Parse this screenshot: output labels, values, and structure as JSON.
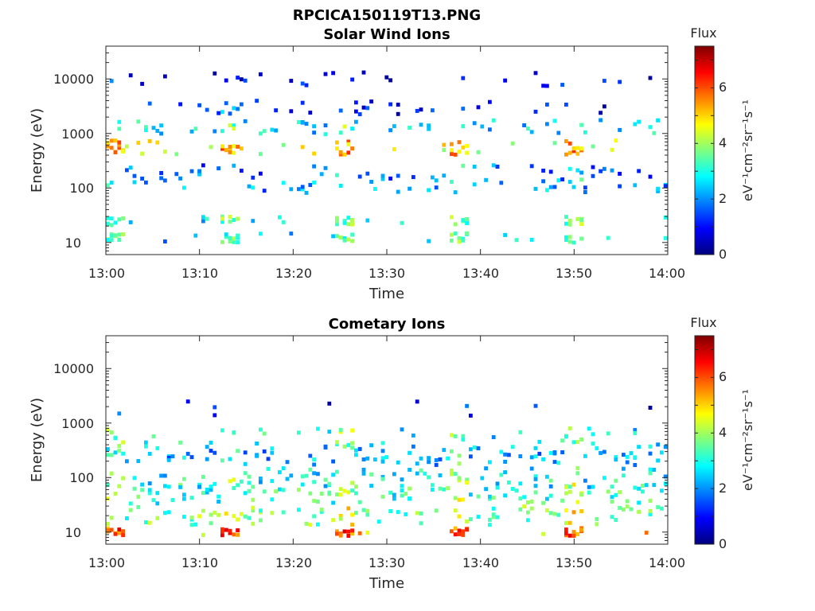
{
  "figure": {
    "title": "RPCICA150119T13.PNG"
  },
  "colorbar": {
    "title": "Flux",
    "units": "eV⁻¹cm⁻²sr⁻¹s⁻¹",
    "ticks": [
      "0",
      "2",
      "4",
      "6"
    ],
    "range": [
      0,
      7.5
    ],
    "colormap": "jet",
    "stops": [
      "#00007f",
      "#0000ff",
      "#007fff",
      "#00ffff",
      "#7fff7f",
      "#ffff00",
      "#ff7f00",
      "#ff0000",
      "#7f0000"
    ]
  },
  "chart_data": [
    {
      "type": "heatmap",
      "title": "Solar Wind Ions",
      "xlabel": "Time",
      "ylabel": "Energy (eV)",
      "xticks": [
        "13:00",
        "13:10",
        "13:20",
        "13:30",
        "13:40",
        "13:50",
        "14:00"
      ],
      "yticks": [
        "10",
        "100",
        "1000",
        "10000"
      ],
      "xlim": [
        "13:00",
        "14:00"
      ],
      "ylim": [
        6,
        40000
      ],
      "yscale": "log",
      "colorbar_title": "Flux",
      "bands": [
        {
          "energy_eV": 12,
          "flux": 2.6
        },
        {
          "energy_eV": 25,
          "flux": 2.8
        },
        {
          "energy_eV": 110,
          "flux": 2.2
        },
        {
          "energy_eV": 200,
          "flux": 1.9
        },
        {
          "energy_eV": 550,
          "flux": 4.6
        },
        {
          "energy_eV": 1300,
          "flux": 2.8
        },
        {
          "energy_eV": 3000,
          "flux": 1.1
        },
        {
          "energy_eV": 10000,
          "flux": 0.9
        }
      ]
    },
    {
      "type": "heatmap",
      "title": "Cometary Ions",
      "xlabel": "Time",
      "ylabel": "Energy (eV)",
      "xticks": [
        "13:00",
        "13:10",
        "13:20",
        "13:30",
        "13:40",
        "13:50",
        "14:00"
      ],
      "yticks": [
        "10",
        "100",
        "1000",
        "10000"
      ],
      "xlim": [
        "13:00",
        "14:00"
      ],
      "ylim": [
        6,
        40000
      ],
      "yscale": "log",
      "colorbar_title": "Flux",
      "bands": [
        {
          "energy_eV": 10,
          "flux": 5.2
        },
        {
          "energy_eV": 20,
          "flux": 3.8
        },
        {
          "energy_eV": 50,
          "flux": 3.3
        },
        {
          "energy_eV": 100,
          "flux": 3.0
        },
        {
          "energy_eV": 250,
          "flux": 2.4
        },
        {
          "energy_eV": 550,
          "flux": 3.0
        },
        {
          "energy_eV": 2000,
          "flux": 1.0
        }
      ]
    }
  ]
}
